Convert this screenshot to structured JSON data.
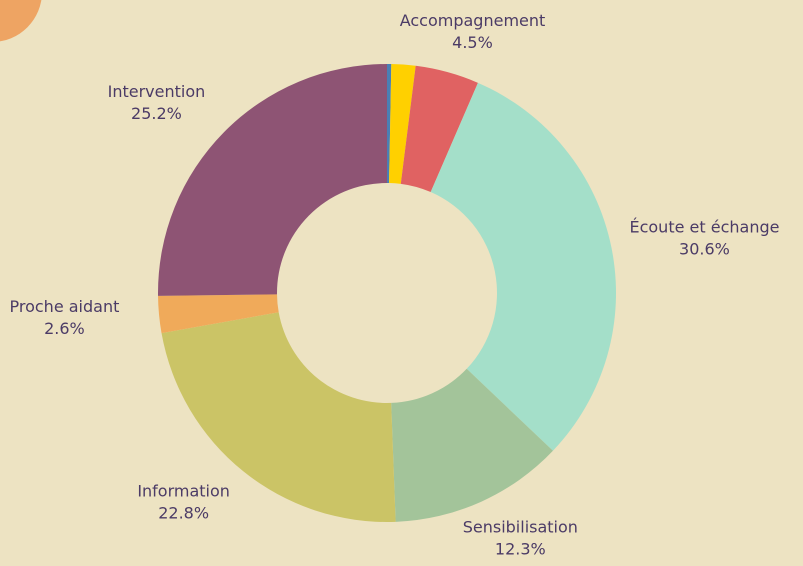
{
  "chart_data": {
    "type": "donut",
    "categories": [
      null,
      null,
      "Accompagnement",
      "Écoute et échange",
      "Sensibilisation",
      "Information",
      "Proche aidant",
      "Intervention"
    ],
    "values": [
      0.3,
      1.7,
      4.5,
      30.6,
      12.3,
      22.8,
      2.6,
      25.2
    ],
    "value_labels": [
      null,
      null,
      "4.5%",
      "30.6%",
      "12.3%",
      "22.8%",
      "2.6%",
      "25.2%"
    ],
    "colors": [
      "#4a7fb5",
      "#ffd000",
      "#e06262",
      "#a4dfc9",
      "#a3c49a",
      "#cbc466",
      "#f0aa5a",
      "#8e5474"
    ]
  }
}
